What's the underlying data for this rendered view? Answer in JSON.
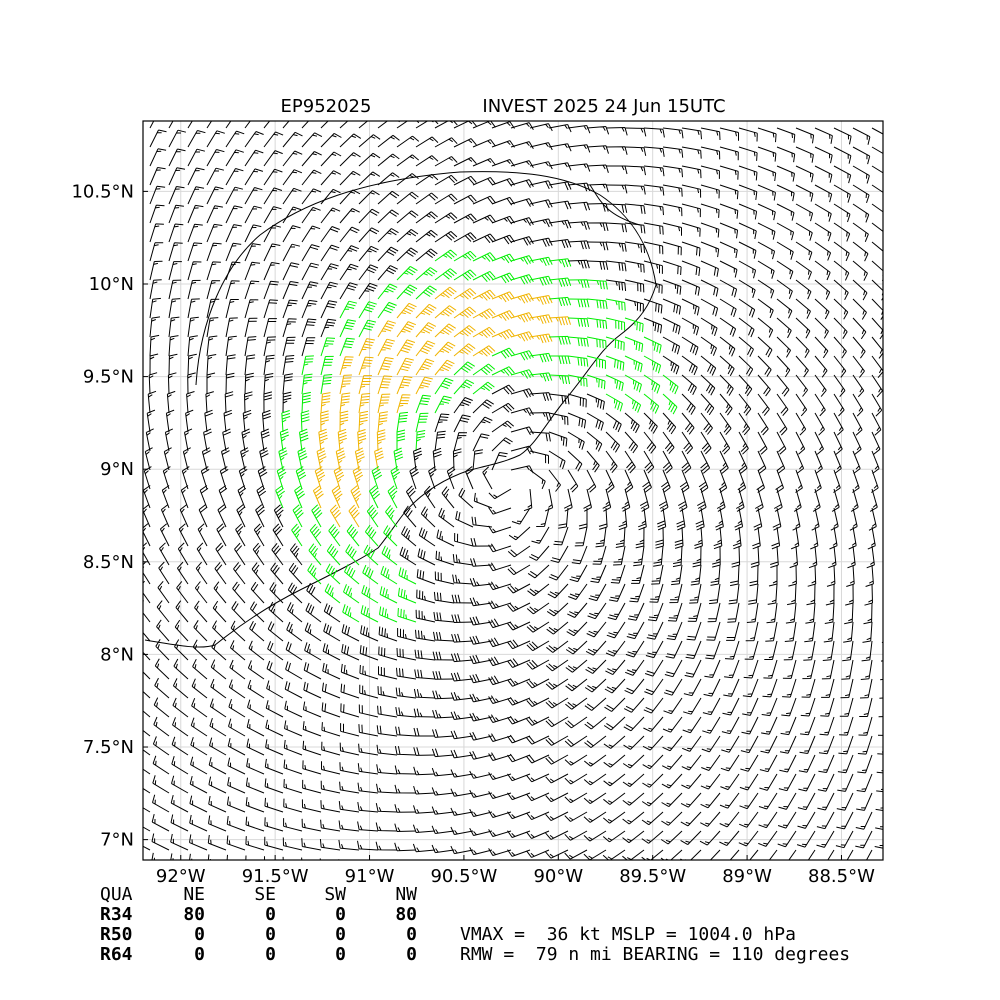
{
  "chart_data": {
    "type": "barbs",
    "title_left": "EP952025",
    "title": "INVEST 2025 24 Jun 15UTC",
    "xlim": [
      -92.2,
      -88.28
    ],
    "ylim": [
      6.89,
      10.88
    ],
    "xticks": [
      {
        "value": -92,
        "label": "92°W"
      },
      {
        "value": -91.5,
        "label": "91.5°W"
      },
      {
        "value": -91,
        "label": "91°W"
      },
      {
        "value": -90.5,
        "label": "90.5°W"
      },
      {
        "value": -90,
        "label": "90°W"
      },
      {
        "value": -89.5,
        "label": "89.5°W"
      },
      {
        "value": -89,
        "label": "89°W"
      },
      {
        "value": -88.5,
        "label": "88.5°W"
      }
    ],
    "yticks": [
      {
        "value": 7,
        "label": "7°N"
      },
      {
        "value": 7.5,
        "label": "7.5°N"
      },
      {
        "value": 8,
        "label": "8°N"
      },
      {
        "value": 8.5,
        "label": "8.5°N"
      },
      {
        "value": 9,
        "label": "9°N"
      },
      {
        "value": 9.5,
        "label": "9.5°N"
      },
      {
        "value": 10,
        "label": "10°N"
      },
      {
        "value": 10.5,
        "label": "10.5°N"
      }
    ],
    "grid": true
  },
  "table": {
    "header": [
      "QUA",
      "NE",
      "SE",
      "SW",
      "NW"
    ],
    "rows": [
      [
        "R34",
        80,
        0,
        0,
        80
      ],
      [
        "R50",
        0,
        0,
        0,
        0
      ],
      [
        "R64",
        0,
        0,
        0,
        0
      ]
    ]
  },
  "info": [
    "VMAX =  36 kt MSLP = 1004.0 hPa",
    "RMW =  79 n mi BEARING = 110 degrees"
  ]
}
